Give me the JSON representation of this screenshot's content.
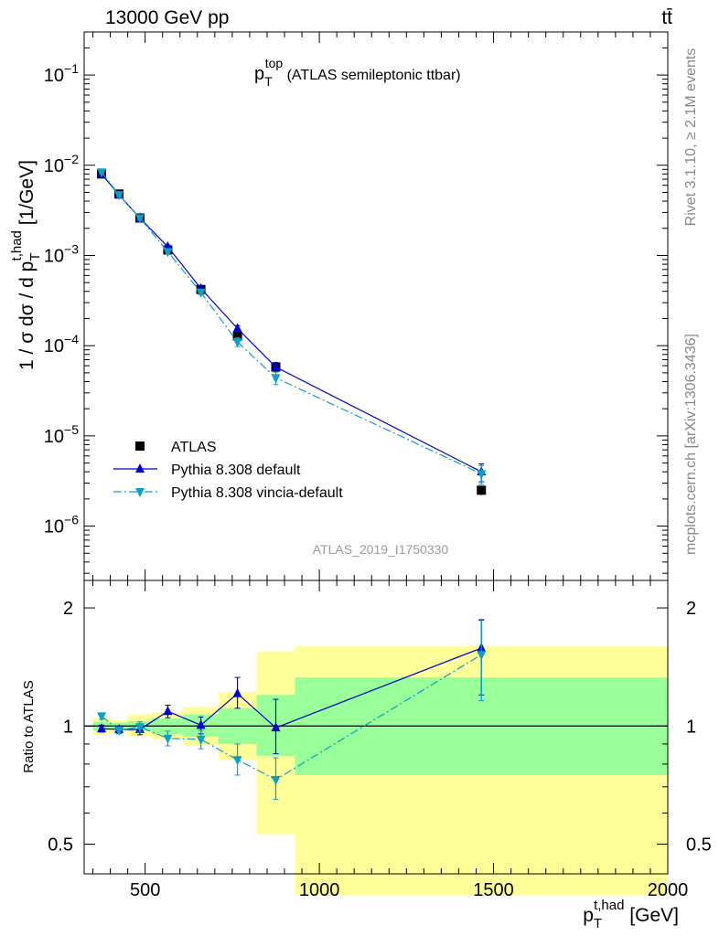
{
  "header": {
    "left": "13000 GeV pp",
    "right": "tt̄"
  },
  "side_text": {
    "rivet": "Rivet 3.1.10, ≥ 2.1M events",
    "mcplots": "mcplots.cern.ch [arXiv:1306.3436]"
  },
  "watermark": "ATLAS_2019_I1750330",
  "chart_data": [
    {
      "type": "scatter",
      "title_main": "p",
      "title_sup": "top",
      "title_sub": "T",
      "title_rest": " (ATLAS semileptonic ttbar)",
      "ylabel_main": "1 / σ dσ / d p",
      "ylabel_sup": "t,had",
      "ylabel_sub": "T",
      "ylabel_unit": " [1/GeV]",
      "yscale": "log",
      "ylim": [
        2.5e-07,
        0.3
      ],
      "xlim": [
        325,
        2000
      ],
      "yticks": [
        {
          "value": 1e-06,
          "base": "10",
          "exp": "−6"
        },
        {
          "value": 1e-05,
          "base": "10",
          "exp": "−5"
        },
        {
          "value": 0.0001,
          "base": "10",
          "exp": "−4"
        },
        {
          "value": 0.001,
          "base": "10",
          "exp": "−3"
        },
        {
          "value": 0.01,
          "base": "10",
          "exp": "−2"
        },
        {
          "value": 0.1,
          "base": "10",
          "exp": "−1"
        }
      ],
      "legend_position": "bottom-left",
      "x": [
        375,
        425,
        485,
        565,
        660,
        765,
        875,
        1465
      ],
      "series": [
        {
          "name": "ATLAS",
          "color": "#000000",
          "marker": "square",
          "values": [
            0.008,
            0.0048,
            0.0026,
            0.00115,
            0.00042,
            0.000128,
            5.8e-05,
            2.5e-06
          ],
          "err_low": [
            0.0004,
            0.0002,
            0.0001,
            5e-05,
            2e-05,
            1.2e-05,
            8e-06,
            3e-07
          ],
          "err_high": [
            0.0004,
            0.0002,
            0.0001,
            5e-05,
            2e-05,
            1.2e-05,
            8e-06,
            3e-07
          ]
        },
        {
          "name": "Pythia 8.308 default",
          "color": "#0000cc",
          "marker": "triangle-up",
          "dash": "",
          "values": [
            0.008,
            0.0047,
            0.0026,
            0.00125,
            0.00043,
            0.000155,
            5.8e-05,
            4e-06
          ],
          "err_low": [
            0.0003,
            0.0002,
            0.0001,
            5e-05,
            2e-05,
            1.2e-05,
            7e-06,
            9e-07
          ],
          "err_high": [
            0.0003,
            0.0002,
            0.0001,
            5e-05,
            2e-05,
            1.2e-05,
            7e-06,
            9e-07
          ]
        },
        {
          "name": "Pythia 8.308 vincia-default",
          "color": "#0aa0c8",
          "marker": "triangle-down",
          "dash": "9,3,2,3",
          "values": [
            0.0084,
            0.0047,
            0.0026,
            0.0011,
            0.00039,
            0.00011,
            4.4e-05,
            3.8e-06
          ],
          "err_low": [
            0.0003,
            0.0002,
            0.0001,
            5e-05,
            2e-05,
            1.2e-05,
            7e-06,
            9e-07
          ],
          "err_high": [
            0.0003,
            0.0002,
            0.0001,
            5e-05,
            2e-05,
            1.2e-05,
            7e-06,
            9e-07
          ]
        }
      ]
    },
    {
      "type": "scatter",
      "ylabel": "Ratio to ATLAS",
      "xlabel_main": "p",
      "xlabel_sup": "t,had",
      "xlabel_sub": "T",
      "xlabel_unit": " [GeV]",
      "yscale": "log",
      "ylim": [
        0.42,
        2.35
      ],
      "xlim": [
        325,
        2000
      ],
      "xticks": [
        500,
        1000,
        1500,
        2000
      ],
      "xtick_labels": [
        "500",
        "1000",
        "1500",
        "2000"
      ],
      "yticks": [
        0.5,
        1,
        2
      ],
      "ytick_labels": [
        "0.5",
        "1",
        "2"
      ],
      "bands": [
        {
          "x0": 350,
          "x1": 400,
          "inner": [
            0.975,
            1.025
          ],
          "outer": [
            0.95,
            1.05
          ]
        },
        {
          "x0": 400,
          "x1": 450,
          "inner": [
            0.98,
            1.02
          ],
          "outer": [
            0.965,
            1.035
          ]
        },
        {
          "x0": 450,
          "x1": 520,
          "inner": [
            0.97,
            1.03
          ],
          "outer": [
            0.94,
            1.07
          ]
        },
        {
          "x0": 520,
          "x1": 610,
          "inner": [
            0.955,
            1.045
          ],
          "outer": [
            0.925,
            1.08
          ]
        },
        {
          "x0": 610,
          "x1": 710,
          "inner": [
            0.94,
            1.07
          ],
          "outer": [
            0.89,
            1.12
          ]
        },
        {
          "x0": 710,
          "x1": 820,
          "inner": [
            0.9,
            1.11
          ],
          "outer": [
            0.82,
            1.22
          ]
        },
        {
          "x0": 820,
          "x1": 930,
          "inner": [
            0.84,
            1.2
          ],
          "outer": [
            0.53,
            1.55
          ]
        },
        {
          "x0": 930,
          "x1": 2000,
          "inner": [
            0.75,
            1.33
          ],
          "outer": [
            0.37,
            1.6
          ]
        }
      ],
      "series": [
        {
          "name": "Pythia 8.308 default",
          "color": "#0000cc",
          "marker": "triangle-up",
          "dash": "",
          "values": [
            0.985,
            0.98,
            0.98,
            1.09,
            1.005,
            1.21,
            0.99,
            1.58
          ],
          "err_low": [
            0.02,
            0.02,
            0.03,
            0.04,
            0.05,
            0.1,
            0.14,
            0.38
          ],
          "err_high": [
            0.02,
            0.02,
            0.03,
            0.04,
            0.05,
            0.12,
            0.18,
            0.28
          ]
        },
        {
          "name": "Pythia 8.308 vincia-default",
          "color": "#0aa0c8",
          "marker": "triangle-down",
          "dash": "9,3,2,3",
          "values": [
            1.06,
            0.975,
            0.995,
            0.93,
            0.925,
            0.82,
            0.73,
            1.52
          ],
          "err_low": [
            0.02,
            0.02,
            0.03,
            0.04,
            0.05,
            0.07,
            0.08,
            0.36
          ],
          "err_high": [
            0.02,
            0.02,
            0.03,
            0.04,
            0.05,
            0.08,
            0.1,
            0.35
          ]
        }
      ]
    }
  ]
}
